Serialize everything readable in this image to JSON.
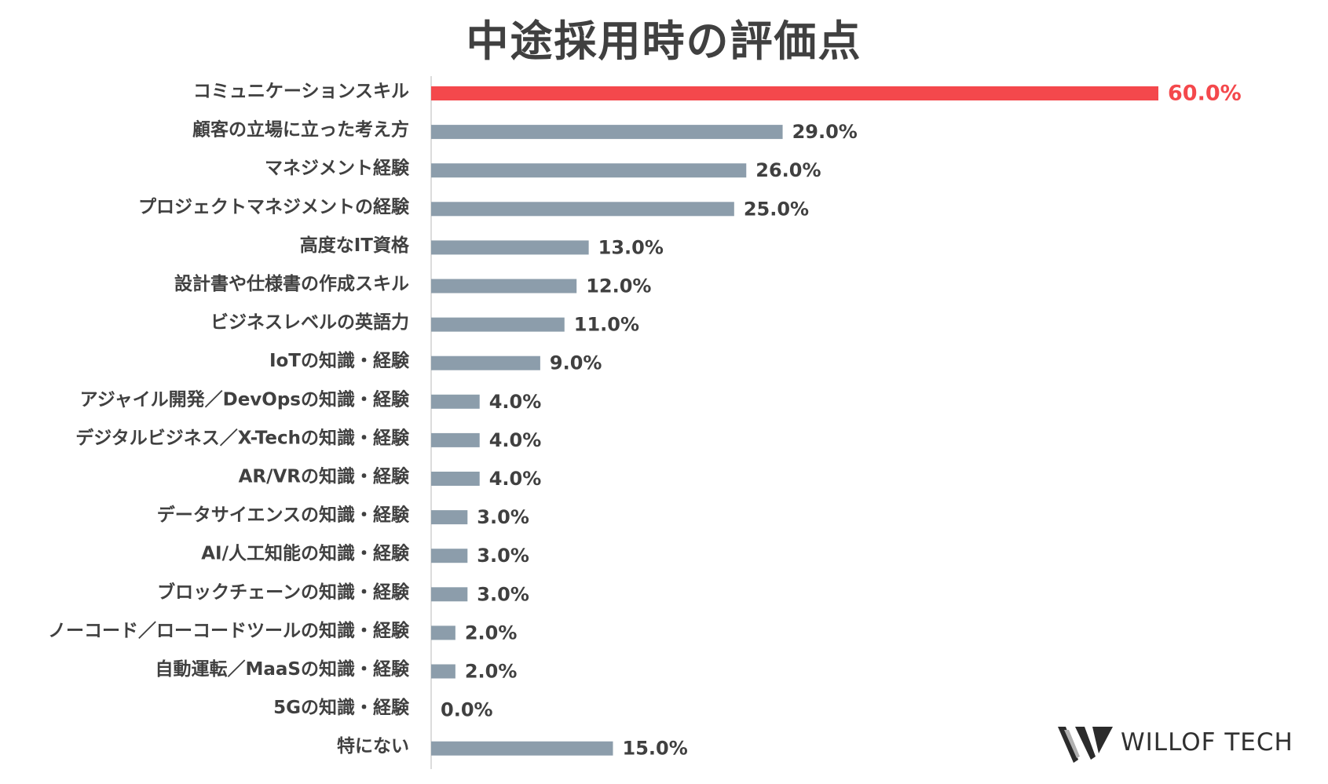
{
  "chart_data": {
    "type": "bar",
    "orientation": "horizontal",
    "title": "中途採用時の評価点",
    "categories": [
      "コミュニケーションスキル",
      "顧客の立場に立った考え方",
      "マネジメント経験",
      "プロジェクトマネジメントの経験",
      "高度なIT資格",
      "設計書や仕様書の作成スキル",
      "ビジネスレベルの英語力",
      "IoTの知識・経験",
      "アジャイル開発／DevOpsの知識・経験",
      "デジタルビジネス／X-Techの知識・経験",
      "AR/VRの知識・経験",
      "データサイエンスの知識・経験",
      "AI/人工知能の知識・経験",
      "ブロックチェーンの知識・経験",
      "ノーコード／ローコードツールの知識・経験",
      "自動運転／MaaSの知識・経験",
      "5Gの知識・経験",
      "特にない"
    ],
    "values": [
      60.0,
      29.0,
      26.0,
      25.0,
      13.0,
      12.0,
      11.0,
      9.0,
      4.0,
      4.0,
      4.0,
      3.0,
      3.0,
      3.0,
      2.0,
      2.0,
      0.0,
      15.0
    ],
    "value_labels": [
      "60.0%",
      "29.0%",
      "26.0%",
      "25.0%",
      "13.0%",
      "12.0%",
      "11.0%",
      "9.0%",
      "4.0%",
      "4.0%",
      "4.0%",
      "3.0%",
      "3.0%",
      "3.0%",
      "2.0%",
      "2.0%",
      "0.0%",
      "15.0%"
    ],
    "xlim": [
      0,
      60
    ],
    "grid": false,
    "legend": "none",
    "highlight_index": 0,
    "colors": {
      "highlight": "#f4484c",
      "bar": "#8c9dab",
      "text": "#404040",
      "axis": "#d0d0d0"
    }
  },
  "logo": {
    "text": "WILLOF TECH"
  }
}
